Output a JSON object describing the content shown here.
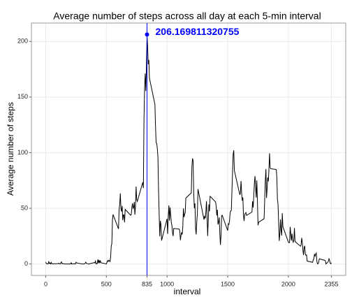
{
  "chart_data": {
    "type": "line",
    "title": "Average number of steps  across all day at each 5-min interval",
    "x_label": "interval",
    "y_label": "Average number of steps",
    "x": [
      0,
      5,
      10,
      15,
      20,
      25,
      30,
      35,
      40,
      45,
      50,
      55,
      100,
      105,
      110,
      115,
      120,
      125,
      130,
      135,
      140,
      145,
      150,
      155,
      200,
      205,
      210,
      215,
      220,
      225,
      230,
      235,
      240,
      245,
      250,
      255,
      300,
      305,
      310,
      315,
      320,
      325,
      330,
      335,
      340,
      345,
      350,
      355,
      400,
      405,
      410,
      415,
      420,
      425,
      430,
      435,
      440,
      445,
      450,
      455,
      500,
      505,
      510,
      515,
      520,
      525,
      530,
      535,
      540,
      545,
      550,
      555,
      600,
      605,
      610,
      615,
      620,
      625,
      630,
      635,
      640,
      645,
      650,
      655,
      700,
      705,
      710,
      715,
      720,
      725,
      730,
      735,
      740,
      745,
      750,
      755,
      800,
      805,
      810,
      815,
      820,
      825,
      830,
      835,
      840,
      845,
      850,
      855,
      900,
      905,
      910,
      915,
      920,
      925,
      930,
      935,
      940,
      945,
      950,
      955,
      1000,
      1005,
      1010,
      1015,
      1020,
      1025,
      1030,
      1035,
      1040,
      1045,
      1050,
      1055,
      1100,
      1105,
      1110,
      1115,
      1120,
      1125,
      1130,
      1135,
      1140,
      1145,
      1150,
      1155,
      1200,
      1205,
      1210,
      1215,
      1220,
      1225,
      1230,
      1235,
      1240,
      1245,
      1250,
      1255,
      1300,
      1305,
      1310,
      1315,
      1320,
      1325,
      1330,
      1335,
      1340,
      1345,
      1350,
      1355,
      1400,
      1405,
      1410,
      1415,
      1420,
      1425,
      1430,
      1435,
      1440,
      1445,
      1450,
      1455,
      1500,
      1505,
      1510,
      1515,
      1520,
      1525,
      1530,
      1535,
      1540,
      1545,
      1550,
      1555,
      1600,
      1605,
      1610,
      1615,
      1620,
      1625,
      1630,
      1635,
      1640,
      1645,
      1650,
      1655,
      1700,
      1705,
      1710,
      1715,
      1720,
      1725,
      1730,
      1735,
      1740,
      1745,
      1750,
      1755,
      1800,
      1805,
      1810,
      1815,
      1820,
      1825,
      1830,
      1835,
      1840,
      1845,
      1850,
      1855,
      1900,
      1905,
      1910,
      1915,
      1920,
      1925,
      1930,
      1935,
      1940,
      1945,
      1950,
      1955,
      2000,
      2005,
      2010,
      2015,
      2020,
      2025,
      2030,
      2035,
      2040,
      2045,
      2050,
      2055,
      2100,
      2105,
      2110,
      2115,
      2120,
      2125,
      2130,
      2135,
      2140,
      2145,
      2150,
      2155,
      2200,
      2205,
      2210,
      2215,
      2220,
      2225,
      2230,
      2235,
      2240,
      2245,
      2250,
      2255,
      2300,
      2305,
      2310,
      2315,
      2320,
      2325,
      2330,
      2335,
      2340,
      2345,
      2350,
      2355
    ],
    "series": [
      {
        "color": "#000000",
        "values": [
          1.72,
          0.34,
          0.13,
          0.15,
          0.08,
          2.09,
          0.53,
          0.87,
          0,
          1.47,
          0.3,
          0.13,
          0.32,
          0.68,
          0.15,
          0.34,
          0,
          1.11,
          1.83,
          0.17,
          0.17,
          0.38,
          0.26,
          0,
          0,
          0,
          1.13,
          0,
          0,
          0.13,
          0,
          0.23,
          0,
          0,
          1.55,
          0.94,
          0,
          0,
          0,
          0,
          0.21,
          0.62,
          1.62,
          0.58,
          0.49,
          0.08,
          0,
          0,
          1.19,
          0.94,
          2.57,
          0,
          0.34,
          0.36,
          4.11,
          0.66,
          3.49,
          0.83,
          3.11,
          1.11,
          0,
          1.57,
          3,
          2.25,
          3.32,
          2.96,
          2.09,
          6.06,
          16.02,
          18.34,
          39.45,
          44.49,
          31.49,
          49.26,
          53.77,
          63.45,
          49.96,
          47.08,
          52.15,
          39.34,
          44.02,
          44.17,
          37.36,
          49.04,
          43.81,
          44.38,
          50.51,
          54.51,
          49.92,
          50.98,
          55.68,
          44.32,
          52.26,
          69.55,
          57.85,
          56.15,
          73.38,
          68.21,
          129.43,
          157.53,
          171.15,
          155.4,
          177.3,
          206.169811320755,
          195.92,
          179.57,
          183.4,
          167.02,
          143.45,
          124.04,
          109.11,
          108.11,
          103.72,
          95.96,
          66.21,
          45.23,
          24.79,
          38.75,
          34.98,
          21.06,
          40.57,
          26.98,
          42.42,
          52.66,
          38.92,
          50.79,
          44.28,
          37.42,
          34.7,
          28.34,
          25.09,
          31.94,
          31.36,
          29.68,
          21.32,
          25.55,
          28.38,
          26.47,
          33.43,
          49.98,
          42.04,
          44.6,
          46.04,
          59.19,
          63.87,
          87.7,
          94.85,
          92.77,
          63.4,
          50.17,
          54.47,
          32.42,
          26.53,
          37.74,
          45.06,
          67.28,
          42.34,
          39.88,
          43.26,
          40.98,
          46.25,
          56.43,
          42.75,
          25.13,
          39.96,
          53.55,
          47.32,
          60.81,
          55.75,
          51.96,
          43.58,
          48.7,
          35.47,
          37.55,
          41.85,
          27.51,
          17.11,
          26.08,
          43.62,
          43.77,
          30.02,
          36.08,
          35.49,
          38.85,
          45.96,
          47.75,
          48.13,
          65.32,
          82.91,
          98.66,
          102.11,
          83.96,
          62.13,
          64.13,
          74.55,
          63.17,
          56.91,
          59.77,
          43.87,
          38.57,
          44.66,
          45.45,
          46.21,
          43.68,
          46.62,
          56.3,
          50.72,
          61.23,
          72.72,
          78.94,
          68.94,
          59.66,
          75.09,
          56.51,
          34.77,
          37.45,
          40.68,
          58.02,
          74.7,
          85.32,
          59.26,
          67.77,
          77.7,
          74.25,
          85.34,
          99.45,
          86.58,
          85.6,
          84.87,
          77.83,
          58.04,
          53.36,
          36.32,
          20.72,
          27.4,
          40.02,
          30.21,
          25.55,
          45.66,
          33.53,
          19.62,
          19.02,
          19.34,
          33.34,
          26.81,
          21.17,
          27.3,
          21.34,
          19.55,
          21.32,
          32.3,
          20.15,
          15.94,
          17.23,
          23.45,
          19.25,
          12.45,
          8.02,
          14.66,
          16.3,
          8.68,
          7.79,
          8.13,
          2.62,
          1.45,
          3.68,
          4.81,
          8.51,
          7.08,
          8.7,
          9.75,
          2.21,
          0.32,
          0.11,
          1.6,
          4.6,
          3.3,
          2.85,
          0,
          0.83,
          0.96,
          1.58,
          2.6,
          4.7,
          3.3,
          0.64,
          0.23,
          1.08
        ]
      }
    ],
    "annotation": {
      "x": 835,
      "y": 206.169811320755,
      "label": "206.169811320755",
      "color": "#0000ff"
    },
    "xlim": [
      -117.75,
      2472.75
    ],
    "ylim": [
      -10.31,
      216.48
    ],
    "xticks": [
      0,
      500,
      835,
      1000,
      1500,
      2000,
      2355
    ],
    "yticks": [
      0,
      50,
      100,
      150,
      200
    ],
    "grid": true
  }
}
